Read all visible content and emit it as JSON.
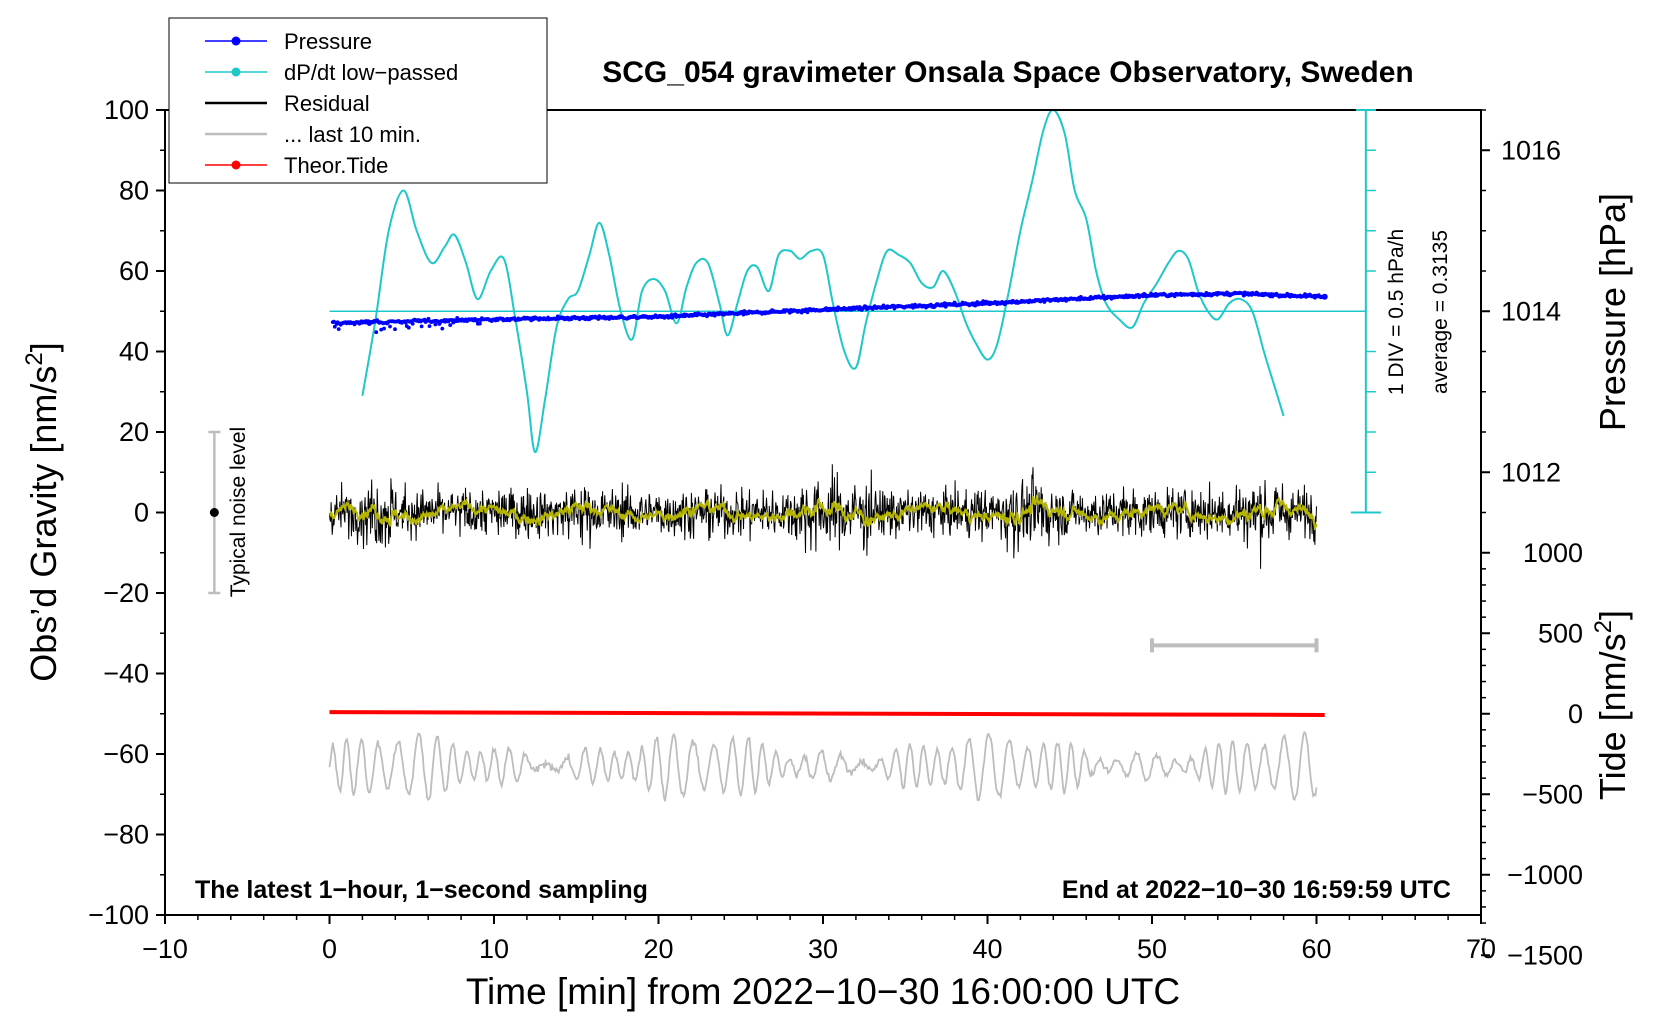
{
  "chart_data": {
    "type": "line",
    "title": "SCG_054 gravimeter Onsala Space Observatory, Sweden",
    "xlabel": "Time [min] from 2022−10−30 16:00:00 UTC",
    "ylabel_left": "Obs’d Gravity [nm/s",
    "ylabel_left_sup": "2",
    "ylabel_left_tail": "]",
    "ylabel_right_top": "Pressure [hPa]",
    "ylabel_right_bottom": "Tide [nm/s",
    "ylabel_right_bottom_sup": "2",
    "ylabel_right_bottom_tail": "]",
    "xlim": [
      -10,
      70
    ],
    "ylim_left": [
      -100,
      100
    ],
    "x_ticks": [
      "−10",
      "0",
      "10",
      "20",
      "30",
      "40",
      "50",
      "60",
      "70"
    ],
    "y_left_ticks": [
      "100",
      "80",
      "60",
      "40",
      "20",
      "0",
      "−20",
      "−40",
      "−60",
      "−80",
      "−100"
    ],
    "pressure_ticks": [
      "1016",
      "1014",
      "1012"
    ],
    "pressure_tick_values": [
      1016,
      1014,
      1012
    ],
    "pressure_axis": {
      "value_at_gravity_50": 1014,
      "hpa_per_20_gravity": 1
    },
    "tide_ticks": [
      "1000",
      "500",
      "0",
      "−500",
      "−1000",
      "−1500"
    ],
    "tide_tick_values": [
      1000,
      500,
      0,
      -500,
      -1000,
      -1500
    ],
    "tide_axis": {
      "value_at_gravity_minus_50": 0,
      "per_unit_gravity": 25
    },
    "legend": [
      {
        "label": "Pressure",
        "color": "#0000ff",
        "marker": true
      },
      {
        "label": "dP/dt low−passed",
        "color": "#1fc8c8",
        "marker": true
      },
      {
        "label": "Residual",
        "color": "#000000",
        "marker": false
      },
      {
        "label": "... last 10 min.",
        "color": "#bdbdbd",
        "marker": false
      },
      {
        "label": "Theor.Tide",
        "color": "#ff0000",
        "marker": true
      }
    ],
    "annotations": {
      "bottom_left": "The latest 1−hour, 1−second sampling",
      "bottom_right": "End at 2022−10−30 16:59:59 UTC",
      "noise_label": "Typical noise level",
      "div_label": "1 DIV = 0.5 hPa/h",
      "average_label": "average = 0.3135"
    },
    "noise_bar": {
      "x": -7,
      "ymin": -20,
      "ymax": 20,
      "center": 0
    },
    "dpdt_scale_bar": {
      "x": 63,
      "ymin": 0,
      "ymax": 100,
      "baseline": 50
    },
    "ten_min_marker": {
      "x_start": 50,
      "x_end": 60,
      "y": -33
    },
    "series": [
      {
        "name": "dP/dt low-passed",
        "color": "#1fc8c8",
        "x": [
          2.0,
          2.8,
          3.6,
          4.5,
          5.3,
          6.2,
          7.0,
          7.6,
          8.3,
          9.0,
          9.8,
          10.6,
          11.3,
          12.0,
          12.5,
          13.1,
          13.8,
          14.5,
          15.1,
          15.8,
          16.4,
          17.0,
          17.7,
          18.4,
          19.0,
          19.7,
          20.4,
          21.1,
          21.7,
          22.3,
          23.0,
          23.7,
          24.2,
          24.8,
          25.4,
          26.0,
          26.7,
          27.3,
          28.0,
          28.6,
          29.3,
          30.0,
          30.6,
          31.3,
          32.0,
          32.6,
          33.3,
          33.9,
          34.6,
          35.3,
          36.0,
          36.7,
          37.3,
          38.0,
          38.7,
          39.3,
          40.0,
          40.6,
          41.3,
          42.0,
          42.7,
          43.4,
          44.0,
          44.7,
          45.3,
          46.0,
          46.6,
          47.2,
          48.0,
          48.8,
          49.5,
          50.3,
          51.0,
          51.6,
          52.2,
          52.8,
          53.4,
          54.0,
          54.7,
          55.4,
          56.1,
          56.8,
          57.4,
          58.0
        ],
        "values": [
          29,
          48,
          70,
          80,
          70,
          62,
          66,
          69,
          62,
          53,
          60,
          63,
          48,
          30,
          15,
          28,
          46,
          53,
          55,
          64,
          72,
          64,
          50,
          43,
          55,
          58,
          55,
          47,
          56,
          62,
          62,
          52,
          44,
          52,
          60,
          61,
          55,
          64,
          65,
          63,
          65,
          64,
          52,
          40,
          36,
          47,
          58,
          65,
          64,
          62,
          57,
          56,
          60,
          55,
          47,
          42,
          38,
          42,
          55,
          70,
          82,
          95,
          100,
          94,
          80,
          73,
          60,
          52,
          48,
          46,
          52,
          57,
          62,
          65,
          63,
          55,
          50,
          48,
          52,
          53,
          50,
          40,
          32,
          24
        ]
      },
      {
        "name": "Pressure",
        "color": "#0000ff",
        "x": [
          0,
          10,
          20,
          30,
          40,
          45,
          50,
          55,
          60.5
        ],
        "values_hpa": [
          1013.85,
          1013.9,
          1013.93,
          1014.02,
          1014.1,
          1014.15,
          1014.2,
          1014.22,
          1014.18
        ]
      },
      {
        "name": "Residual",
        "color": "#000000",
        "x_range": [
          0,
          60
        ],
        "y_range": [
          -16,
          19
        ]
      },
      {
        "name": "Residual (smoothed)",
        "color": "#b5b500",
        "x_range": [
          0,
          60
        ],
        "y_range": [
          -4,
          4
        ]
      },
      {
        "name": "Theor.Tide",
        "color": "#ff0000",
        "x": [
          0,
          60.5
        ],
        "values": [
          -49.6,
          -50.3
        ]
      },
      {
        "name": "... last 10 min.",
        "color": "#bdbdbd",
        "x_range": [
          0,
          60
        ],
        "center": -63,
        "y_range": [
          -77,
          -49
        ]
      }
    ]
  }
}
